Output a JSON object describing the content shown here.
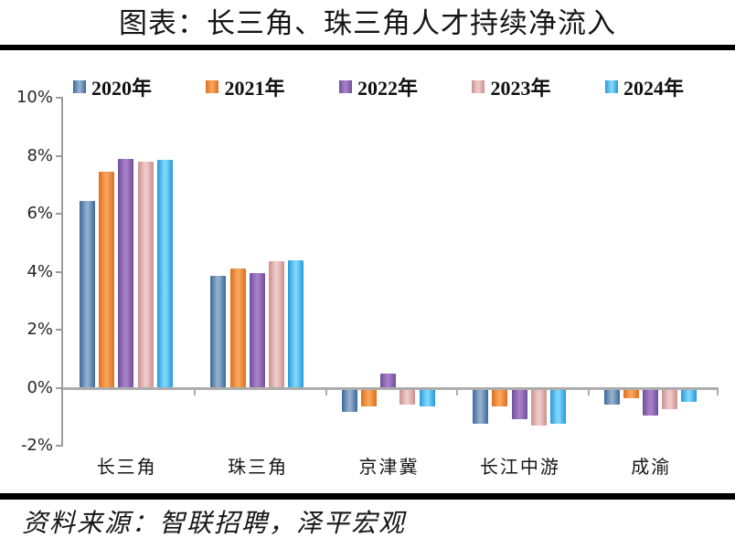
{
  "title": "图表：长三角、珠三角人才持续净流入",
  "source": "资料来源：智联招聘，泽平宏观",
  "chart_data": {
    "type": "bar",
    "title": "图表：长三角、珠三角人才持续净流入",
    "categories": [
      "长三角",
      "珠三角",
      "京津冀",
      "长江中游",
      "成渝"
    ],
    "series": [
      {
        "name": "2020年",
        "color_edge": "#3c6899",
        "color_mid": "#92afcd",
        "values": [
          6.45,
          3.85,
          -0.8,
          -1.2,
          -0.55
        ]
      },
      {
        "name": "2021年",
        "color_edge": "#dd6f1e",
        "color_mid": "#f9a45b",
        "values": [
          7.45,
          4.1,
          -0.6,
          -0.6,
          -0.3
        ]
      },
      {
        "name": "2022年",
        "color_edge": "#6f4f97",
        "color_mid": "#a77fc9",
        "values": [
          7.9,
          3.95,
          0.5,
          -1.05,
          -0.9
        ]
      },
      {
        "name": "2023年",
        "color_edge": "#c9908e",
        "color_mid": "#eecac8",
        "values": [
          7.8,
          4.35,
          -0.55,
          -1.25,
          -0.7
        ]
      },
      {
        "name": "2024年",
        "color_edge": "#2798d8",
        "color_mid": "#7fd6fb",
        "values": [
          7.85,
          4.4,
          -0.6,
          -1.2,
          -0.45
        ]
      }
    ],
    "ytick_labels": [
      "10%",
      "8%",
      "6%",
      "4%",
      "2%",
      "0%",
      "-2%"
    ],
    "ylim": [
      -2,
      10
    ],
    "ylabel": "",
    "xlabel": "",
    "grid": false,
    "legend_position": "top",
    "axis_color": "#9c9c9c",
    "zero_line_color": "#acacac"
  }
}
